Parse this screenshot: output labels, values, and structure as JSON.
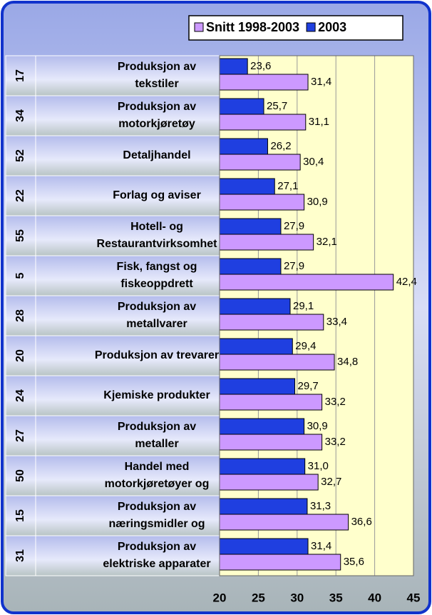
{
  "chart_data": {
    "type": "barh",
    "categories": [
      "Produksjon av\ntekstiler",
      "Produksjon av\nmotorkjøretøy",
      "Detaljhandel",
      "Forlag og aviser",
      "Hotell- og\nRestaurantvirksomhet",
      "Fisk, fangst og\nfiskeoppdrett",
      "Produksjon av\nmetallvarer",
      "Produksjon av trevarer",
      "Kjemiske produkter",
      "Produksjon av\nmetaller",
      "Handel med\nmotorkjøretøyer og",
      "Produksjon av\nnæringsmidler og",
      "Produksjon av\nelektriske apparater"
    ],
    "category_codes": [
      "17",
      "34",
      "52",
      "22",
      "55",
      "5",
      "28",
      "20",
      "24",
      "27",
      "50",
      "15",
      "31"
    ],
    "series": [
      {
        "name": "Snitt 1998-2003",
        "color": "#cc99ff",
        "values": [
          31.4,
          31.1,
          30.4,
          30.9,
          32.1,
          42.4,
          33.4,
          34.8,
          33.2,
          33.2,
          32.7,
          36.6,
          35.6
        ],
        "value_labels": [
          "31,4",
          "31,1",
          "30,4",
          "30,9",
          "32,1",
          "42,4",
          "33,4",
          "34,8",
          "33,2",
          "33,2",
          "32,7",
          "36,6",
          "35,6"
        ]
      },
      {
        "name": "2003",
        "color": "#1f3fe0",
        "values": [
          23.6,
          25.7,
          26.2,
          27.1,
          27.9,
          27.9,
          29.1,
          29.4,
          29.7,
          30.9,
          31.0,
          31.3,
          31.4
        ],
        "value_labels": [
          "23,6",
          "25,7",
          "26,2",
          "27,1",
          "27,9",
          "27,9",
          "29,1",
          "29,4",
          "29,7",
          "30,9",
          "31,0",
          "31,3",
          "31,4"
        ]
      }
    ],
    "xlim": [
      20,
      45
    ],
    "xticks": [
      20,
      25,
      30,
      35,
      40,
      45
    ],
    "grid": true,
    "legend": "top-right"
  }
}
